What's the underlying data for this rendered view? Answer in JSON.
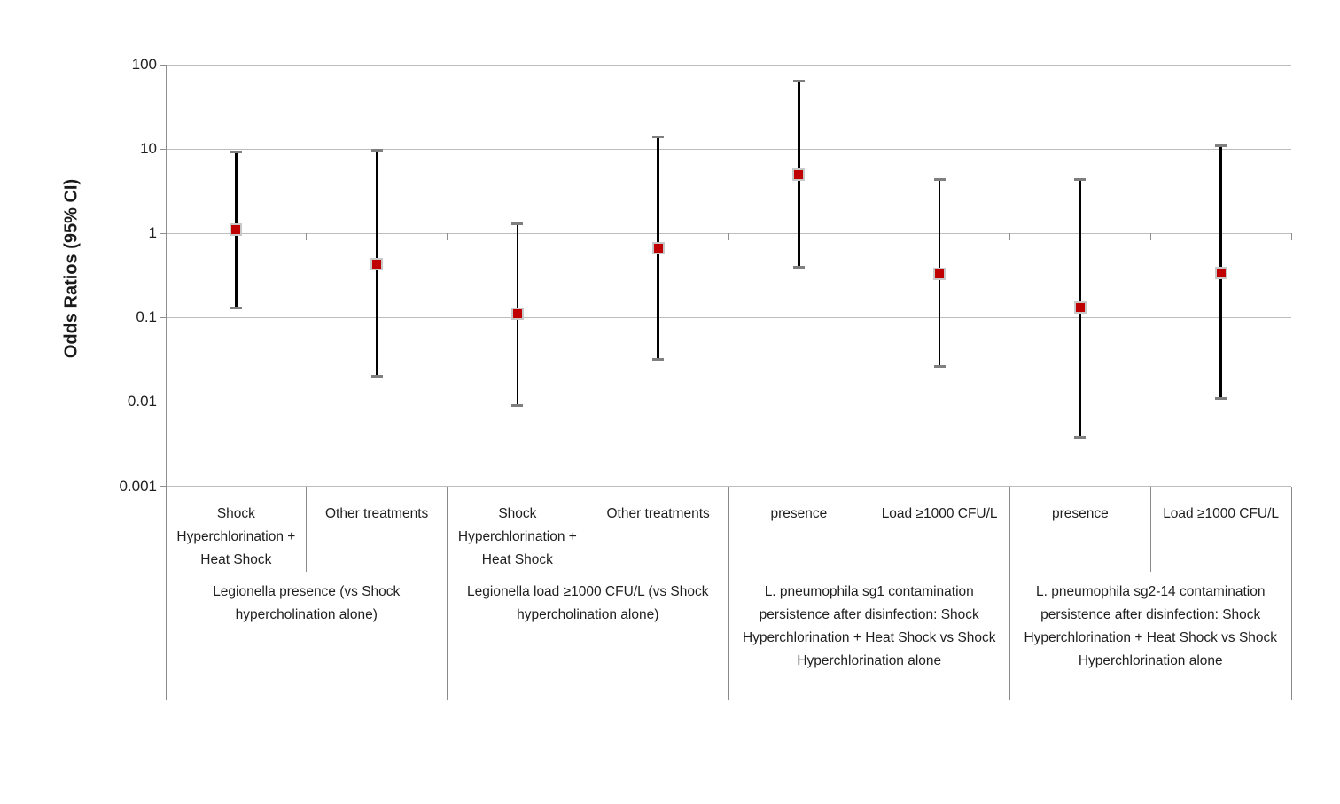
{
  "chart_data": {
    "type": "scatter",
    "subtype": "odds-ratio-forest-plot",
    "title": "",
    "ylabel": "Odds Ratios (95% CI)",
    "xlabel": "",
    "yaxis": {
      "scale": "log",
      "min": 0.001,
      "max": 100,
      "tick_labels": [
        "100",
        "10",
        "1",
        "0.1",
        "0.01",
        "0.001"
      ],
      "tick_values": [
        100,
        10,
        1,
        0.1,
        0.01,
        0.001
      ],
      "grid": true
    },
    "marker": {
      "shape": "square",
      "semantic": "odds-ratio-point"
    },
    "legend": {
      "visible": false
    },
    "groups": [
      {
        "label": "Legionella presence (vs Shock hypercholination alone)",
        "points": [
          {
            "category": "Shock Hyperchlorination + Heat Shock",
            "or": 1.1,
            "ci_low": 0.13,
            "ci_high": 9.1
          },
          {
            "category": "Other treatments",
            "or": 0.43,
            "ci_low": 0.02,
            "ci_high": 9.6
          }
        ]
      },
      {
        "label": "Legionella load ≥1000 CFU/L (vs Shock hypercholination alone)",
        "points": [
          {
            "category": "Shock Hyperchlorination + Heat Shock",
            "or": 0.11,
            "ci_low": 0.009,
            "ci_high": 1.3
          },
          {
            "category": "Other treatments",
            "or": 0.66,
            "ci_low": 0.032,
            "ci_high": 14
          }
        ]
      },
      {
        "label": "L. pneumophila sg1 contamination persistence after disinfection: Shock Hyperchlorination + Heat Shock vs Shock Hyperchlorination alone",
        "points": [
          {
            "category": "presence",
            "or": 5.0,
            "ci_low": 0.4,
            "ci_high": 64
          },
          {
            "category": "Load ≥1000 CFU/L",
            "or": 0.33,
            "ci_low": 0.026,
            "ci_high": 4.4
          }
        ]
      },
      {
        "label": "L. pneumophila sg2-14 contamination persistence after disinfection: Shock Hyperchlorination + Heat Shock vs Shock Hyperchlorination alone",
        "points": [
          {
            "category": "presence",
            "or": 0.13,
            "ci_low": 0.0038,
            "ci_high": 4.4
          },
          {
            "category": "Load ≥1000 CFU/L",
            "or": 0.34,
            "ci_low": 0.011,
            "ci_high": 10.9
          }
        ]
      }
    ],
    "colors": {
      "marker_fill": "#c00000",
      "marker_border": "#c8c8c8",
      "error_line": "#000000",
      "error_cap": "#7f7f7f",
      "gridline": "#bdbdbd",
      "axis_line": "#8e8e8e",
      "separator_line": "#8a8a8a",
      "text": "#1f1f1f",
      "background": "#ffffff"
    }
  }
}
